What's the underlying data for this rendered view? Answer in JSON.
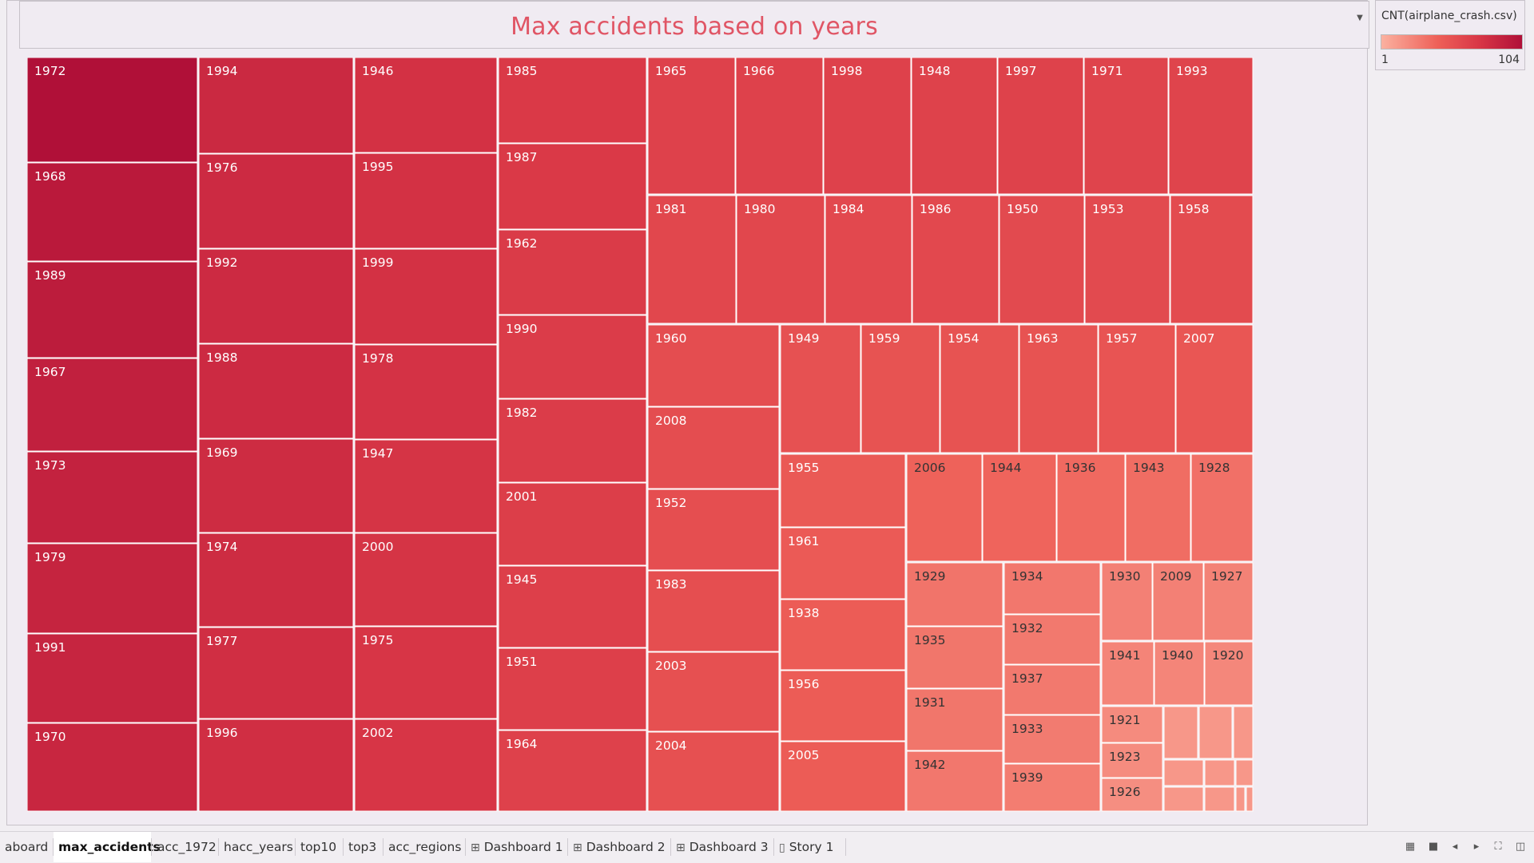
{
  "chart_data": {
    "type": "treemap",
    "title": "Max accidents based on years",
    "measure": "CNT(airplane_crash.csv)",
    "color_range": [
      1,
      104
    ],
    "colors": [
      "#fbb1a0",
      "#ee6058",
      "#d83646",
      "#b01038"
    ],
    "tiles": [
      {
        "year": "1972",
        "value": 104
      },
      {
        "year": "1968",
        "value": 97
      },
      {
        "year": "1989",
        "value": 95
      },
      {
        "year": "1967",
        "value": 92
      },
      {
        "year": "1973",
        "value": 90
      },
      {
        "year": "1979",
        "value": 89
      },
      {
        "year": "1991",
        "value": 88
      },
      {
        "year": "1970",
        "value": 87
      },
      {
        "year": "1994",
        "value": 85
      },
      {
        "year": "1976",
        "value": 84
      },
      {
        "year": "1992",
        "value": 84
      },
      {
        "year": "1988",
        "value": 84
      },
      {
        "year": "1969",
        "value": 83
      },
      {
        "year": "1974",
        "value": 83
      },
      {
        "year": "1977",
        "value": 81
      },
      {
        "year": "1996",
        "value": 81
      },
      {
        "year": "1946",
        "value": 79
      },
      {
        "year": "1995",
        "value": 79
      },
      {
        "year": "1999",
        "value": 79
      },
      {
        "year": "1978",
        "value": 78
      },
      {
        "year": "1947",
        "value": 77
      },
      {
        "year": "2000",
        "value": 77
      },
      {
        "year": "1975",
        "value": 76
      },
      {
        "year": "2002",
        "value": 76
      },
      {
        "year": "1985",
        "value": 73
      },
      {
        "year": "1987",
        "value": 73
      },
      {
        "year": "1962",
        "value": 72
      },
      {
        "year": "1990",
        "value": 71
      },
      {
        "year": "1982",
        "value": 71
      },
      {
        "year": "2001",
        "value": 70
      },
      {
        "year": "1945",
        "value": 69
      },
      {
        "year": "1951",
        "value": 69
      },
      {
        "year": "1964",
        "value": 68
      },
      {
        "year": "1965",
        "value": 68
      },
      {
        "year": "1966",
        "value": 68
      },
      {
        "year": "1998",
        "value": 68
      },
      {
        "year": "1948",
        "value": 67
      },
      {
        "year": "1997",
        "value": 67
      },
      {
        "year": "1971",
        "value": 66
      },
      {
        "year": "1993",
        "value": 66
      },
      {
        "year": "1981",
        "value": 64
      },
      {
        "year": "1980",
        "value": 64
      },
      {
        "year": "1984",
        "value": 63
      },
      {
        "year": "1986",
        "value": 63
      },
      {
        "year": "1950",
        "value": 62
      },
      {
        "year": "1953",
        "value": 62
      },
      {
        "year": "1958",
        "value": 61
      },
      {
        "year": "1960",
        "value": 60
      },
      {
        "year": "2008",
        "value": 60
      },
      {
        "year": "1952",
        "value": 59
      },
      {
        "year": "1983",
        "value": 59
      },
      {
        "year": "2003",
        "value": 58
      },
      {
        "year": "2004",
        "value": 58
      },
      {
        "year": "1949",
        "value": 57
      },
      {
        "year": "1959",
        "value": 56
      },
      {
        "year": "1954",
        "value": 56
      },
      {
        "year": "1963",
        "value": 56
      },
      {
        "year": "1957",
        "value": 55
      },
      {
        "year": "2007",
        "value": 54
      },
      {
        "year": "1955",
        "value": 52
      },
      {
        "year": "1961",
        "value": 51
      },
      {
        "year": "1938",
        "value": 50
      },
      {
        "year": "1956",
        "value": 50
      },
      {
        "year": "2005",
        "value": 50
      },
      {
        "year": "2006",
        "value": 46
      },
      {
        "year": "1944",
        "value": 45
      },
      {
        "year": "1936",
        "value": 42
      },
      {
        "year": "1943",
        "value": 40
      },
      {
        "year": "1928",
        "value": 38
      },
      {
        "year": "1929",
        "value": 36
      },
      {
        "year": "1935",
        "value": 35
      },
      {
        "year": "1931",
        "value": 35
      },
      {
        "year": "1942",
        "value": 34
      },
      {
        "year": "1934",
        "value": 34
      },
      {
        "year": "1932",
        "value": 33
      },
      {
        "year": "1937",
        "value": 33
      },
      {
        "year": "1933",
        "value": 32
      },
      {
        "year": "1939",
        "value": 31
      },
      {
        "year": "1930",
        "value": 29
      },
      {
        "year": "2009",
        "value": 29
      },
      {
        "year": "1927",
        "value": 28
      },
      {
        "year": "1941",
        "value": 27
      },
      {
        "year": "1940",
        "value": 26
      },
      {
        "year": "1920",
        "value": 25
      },
      {
        "year": "1921",
        "value": 23
      },
      {
        "year": "1923",
        "value": 22
      },
      {
        "year": "1926",
        "value": 21
      }
    ]
  },
  "legend": {
    "title": "CNT(airplane_crash.csv)",
    "min": "1",
    "max": "104"
  },
  "tabs": [
    {
      "label": "aboard",
      "icon": ""
    },
    {
      "label": "max_accidents",
      "icon": "",
      "active": true
    },
    {
      "label": "acc_1972",
      "icon": ""
    },
    {
      "label": "hacc_years",
      "icon": ""
    },
    {
      "label": "top10",
      "icon": ""
    },
    {
      "label": "top3",
      "icon": ""
    },
    {
      "label": "acc_regions",
      "icon": ""
    },
    {
      "label": "Dashboard 1",
      "icon": "dashboard-icon"
    },
    {
      "label": "Dashboard 2",
      "icon": "dashboard-icon"
    },
    {
      "label": "Dashboard 3",
      "icon": "dashboard-icon"
    },
    {
      "label": "Story 1",
      "icon": "story-icon"
    }
  ],
  "controls": [
    "sheet-sorter-icon",
    "filmstrip-icon",
    "prev-sheet-icon",
    "next-sheet-icon",
    "fullscreen-icon",
    "presentation-icon"
  ]
}
